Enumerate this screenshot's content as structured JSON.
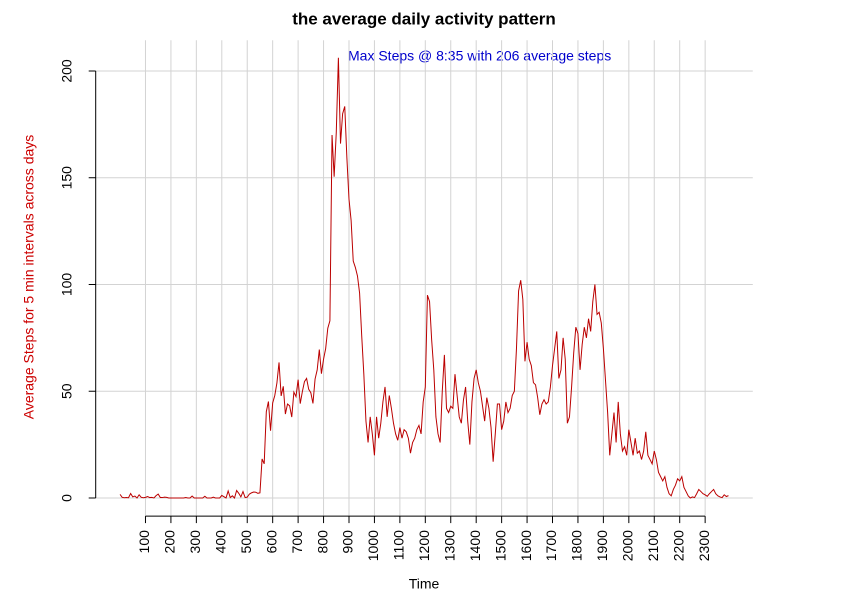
{
  "chart_data": {
    "type": "line",
    "title": "the average daily activity pattern",
    "xlabel": "Time",
    "ylabel": "Average Steps for 5 min intervals across days",
    "ylabel_color": "#cc0000",
    "annotation": "Max Steps @ 8:35 with 206 average steps",
    "annotation_color": "#0000cc",
    "color": "#bb0000",
    "grid": true,
    "values": [
      1.7,
      0.3,
      0.1,
      0.2,
      0.1,
      2.1,
      0.5,
      0.9,
      0,
      1.5,
      0.3,
      0.1,
      0.3,
      0.7,
      0.2,
      0.3,
      0,
      1.1,
      1.8,
      0.2,
      0.2,
      0.4,
      0.3,
      0,
      0,
      0,
      0,
      0,
      0,
      0,
      0,
      0.2,
      0,
      0,
      0.9,
      0,
      0,
      0,
      0,
      0,
      0.8,
      0,
      0,
      0,
      0.4,
      0,
      0,
      0,
      1.2,
      0.6,
      0,
      3.3,
      0.2,
      1.0,
      0,
      3.5,
      2.2,
      0.5,
      3.0,
      0.2,
      0.4,
      1.8,
      2.4,
      2.8,
      2.7,
      2.2,
      2.4,
      18.3,
      16.0,
      40.4,
      45.2,
      31.5,
      44.5,
      48.0,
      53.9,
      63.5,
      47.8,
      52.3,
      39.3,
      44.0,
      43.2,
      37.9,
      49.6,
      47.5,
      55.4,
      44.2,
      49.8,
      54.5,
      56.0,
      50.9,
      49.3,
      44.3,
      55.7,
      60.0,
      69.5,
      58.2,
      65.0,
      70.0,
      79.5,
      83.0,
      170.0,
      150.5,
      171.2,
      206.17,
      166.0,
      180.0,
      183.4,
      159.4,
      140.0,
      130.0,
      111.0,
      108.0,
      104.0,
      96.0,
      76.0,
      58.0,
      36.0,
      26.0,
      38.0,
      30.0,
      20.0,
      38.0,
      28.0,
      35.0,
      45.0,
      52.0,
      38.0,
      48.0,
      42.0,
      35.0,
      30.0,
      27.0,
      33.0,
      28.0,
      32.0,
      31.0,
      28.0,
      21.0,
      26.0,
      28.0,
      32.0,
      34.0,
      30.0,
      45.0,
      52.0,
      95.0,
      92.0,
      74.0,
      60.0,
      38.0,
      30.0,
      26.0,
      50.0,
      67.0,
      42.0,
      40.0,
      43.0,
      42.0,
      58.0,
      48.0,
      38.0,
      35.0,
      46.0,
      52.0,
      36.0,
      25.0,
      45.0,
      56.0,
      60.0,
      54.0,
      50.0,
      43.0,
      36.0,
      47.0,
      42.0,
      33.0,
      17.0,
      30.0,
      44.0,
      44.0,
      32.0,
      36.0,
      45.0,
      40.0,
      42.0,
      48.0,
      50.0,
      70.0,
      97.0,
      102.0,
      93.0,
      64.0,
      73.0,
      65.0,
      62.0,
      54.0,
      53.0,
      47.0,
      39.0,
      44.0,
      46.0,
      44.0,
      45.0,
      52.0,
      62.0,
      70.0,
      78.0,
      56.0,
      60.0,
      75.0,
      65.0,
      35.0,
      38.0,
      52.0,
      68.0,
      80.0,
      77.0,
      60.0,
      72.0,
      80.0,
      75.0,
      84.0,
      78.0,
      92.0,
      100.0,
      86.0,
      87.0,
      82.0,
      70.0,
      55.0,
      40.0,
      20.0,
      30.0,
      40.0,
      26.0,
      45.0,
      30.0,
      22.0,
      24.0,
      20.0,
      32.0,
      26.0,
      20.0,
      28.0,
      21.0,
      22.0,
      18.0,
      22.0,
      31.0,
      20.0,
      18.0,
      16.0,
      22.0,
      18.0,
      12.0,
      10.0,
      8.0,
      10.0,
      5.0,
      2.0,
      1.0,
      4.0,
      6.0,
      9.0,
      8.0,
      10.0,
      5.0,
      3.0,
      1.0,
      0.0,
      0.5,
      0.2,
      2.0,
      4.0,
      3.0,
      2.0,
      1.5,
      0.8,
      2.0,
      3.0,
      4.0,
      2.0,
      1.0,
      0.5,
      0.2,
      1.5,
      0.7,
      1.1
    ],
    "xlim": [
      -11.48,
      298.48
    ],
    "xticks": [
      {
        "value": 12,
        "label": "100"
      },
      {
        "value": 24,
        "label": "200"
      },
      {
        "value": 36,
        "label": "300"
      },
      {
        "value": 48,
        "label": "400"
      },
      {
        "value": 60,
        "label": "500"
      },
      {
        "value": 72,
        "label": "600"
      },
      {
        "value": 84,
        "label": "700"
      },
      {
        "value": 96,
        "label": "800"
      },
      {
        "value": 108,
        "label": "900"
      },
      {
        "value": 120,
        "label": "1000"
      },
      {
        "value": 132,
        "label": "1100"
      },
      {
        "value": 144,
        "label": "1200"
      },
      {
        "value": 156,
        "label": "1300"
      },
      {
        "value": 168,
        "label": "1400"
      },
      {
        "value": 180,
        "label": "1500"
      },
      {
        "value": 192,
        "label": "1600"
      },
      {
        "value": 204,
        "label": "1700"
      },
      {
        "value": 216,
        "label": "1800"
      },
      {
        "value": 228,
        "label": "1900"
      },
      {
        "value": 240,
        "label": "2000"
      },
      {
        "value": 252,
        "label": "2100"
      },
      {
        "value": 264,
        "label": "2200"
      },
      {
        "value": 276,
        "label": "2300"
      }
    ],
    "ylim": [
      -8.25,
      214.42
    ],
    "yticks": [
      0,
      50,
      100,
      150,
      200
    ]
  }
}
